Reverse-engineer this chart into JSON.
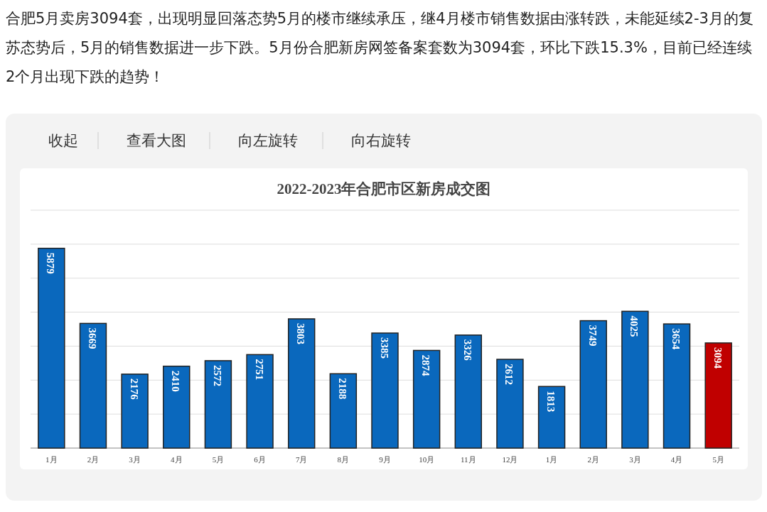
{
  "chart_data": {
    "type": "bar",
    "title": "2022-2023年合肥市区新房成交图",
    "annotations": [
      "合肥5月卖房3094套，出现明显回落态势5月的楼市继续承压，继4月楼市销售数据由涨转跌，未能延续2-3月的复苏态势后，5月的销售数据进一步下跌。5月份合肥新房网签备案套数为3094套，环比下跌15.3%，目前已经连续2个月出现下跌的趋势！",
      "收起",
      "查看大图",
      "向左旋转",
      "向右旋转"
    ],
    "categories": [
      "1月",
      "2月",
      "3月",
      "4月",
      "5月",
      "6月",
      "7月",
      "8月",
      "9月",
      "10月",
      "11月",
      "12月",
      "1月",
      "2月",
      "3月",
      "4月",
      "5月"
    ],
    "values": [
      5879,
      3669,
      2176,
      2410,
      2572,
      2751,
      3803,
      2188,
      3385,
      2874,
      3326,
      2612,
      1813,
      3749,
      4025,
      3654,
      3094
    ],
    "colors": [
      "#0a68bd",
      "#0a68bd",
      "#0a68bd",
      "#0a68bd",
      "#0a68bd",
      "#0a68bd",
      "#0a68bd",
      "#0a68bd",
      "#0a68bd",
      "#0a68bd",
      "#0a68bd",
      "#0a68bd",
      "#0a68bd",
      "#0a68bd",
      "#0a68bd",
      "#0a68bd",
      "#c00000"
    ],
    "ylim": [
      0,
      7000
    ],
    "yticks": [
      {
        "value": 0,
        "label": null
      },
      {
        "value": 1000,
        "label": null
      },
      {
        "value": 2000,
        "label": null
      },
      {
        "value": 3000,
        "label": null
      },
      {
        "value": 4000,
        "label": null
      },
      {
        "value": 5000,
        "label": null
      },
      {
        "value": 6000,
        "label": null
      },
      {
        "value": 7000,
        "label": null
      }
    ],
    "grid": "y",
    "tick_labels": "x",
    "data_labels": true
  }
}
